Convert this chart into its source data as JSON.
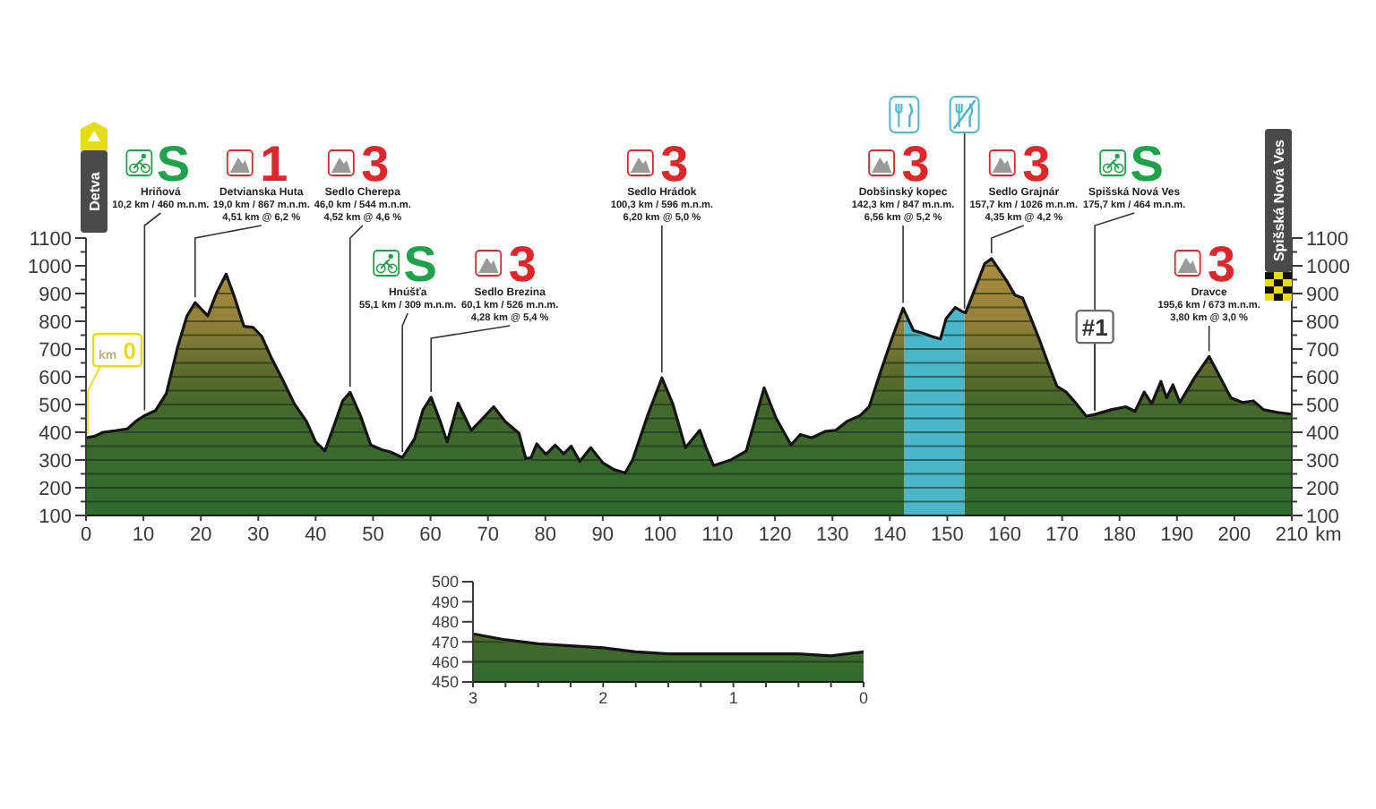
{
  "chart_data": [
    {
      "type": "area",
      "xlabel": "km",
      "color": "#2f6b30",
      "x": [
        0,
        1.4,
        3,
        5.1,
        7.2,
        8.7,
        10.2,
        12.1,
        14,
        16,
        17.6,
        19,
        21.2,
        22.8,
        24.4,
        25.9,
        27.5,
        29.1,
        30.6,
        32.2,
        34.3,
        36.3,
        38.4,
        40,
        41.6,
        43.1,
        44.7,
        46,
        47.8,
        49.6,
        51.5,
        53,
        55.1,
        57.2,
        58.7,
        60.1,
        61.7,
        62.9,
        64.8,
        67.1,
        68.6,
        71,
        73,
        75.4,
        76.6,
        77.5,
        78.5,
        80.1,
        81.7,
        83.2,
        84.5,
        86,
        87.9,
        90,
        92,
        93.9,
        95.2,
        97.8,
        100.3,
        102.2,
        104.4,
        106.9,
        108,
        109.3,
        112.4,
        115,
        116.6,
        118.1,
        120.2,
        122.8,
        124.4,
        126.4,
        128.7,
        130.6,
        132.5,
        134.8,
        136.4,
        138.4,
        140.5,
        142.3,
        144.1,
        145.7,
        147.2,
        148.8,
        149.8,
        151.4,
        152.6,
        153.2,
        155,
        156.5,
        157.7,
        158.9,
        160.3,
        161.8,
        163.1,
        164.4,
        166,
        167.9,
        169.1,
        170.7,
        172.3,
        174.2,
        175.7,
        178.5,
        181.1,
        182.7,
        184.3,
        185.6,
        187.2,
        188.2,
        189.3,
        190.5,
        193.1,
        195.6,
        197.8,
        199.4,
        201.4,
        203.3,
        205.1,
        207.7,
        210
      ],
      "values": [
        380,
        385,
        400,
        405,
        412,
        440,
        460,
        478,
        540,
        710,
        820,
        867,
        820,
        905,
        970,
        885,
        782,
        778,
        746,
        672,
        587,
        502,
        439,
        365,
        333,
        418,
        513,
        544,
        460,
        354,
        337,
        329,
        309,
        375,
        481,
        526,
        439,
        365,
        505,
        407,
        439,
        492,
        439,
        397,
        305,
        308,
        358,
        320,
        354,
        322,
        350,
        295,
        344,
        290,
        265,
        253,
        301,
        460,
        596,
        502,
        344,
        407,
        344,
        280,
        301,
        333,
        450,
        560,
        450,
        354,
        392,
        380,
        403,
        407,
        439,
        460,
        492,
        619,
        746,
        847,
        767,
        757,
        746,
        736,
        810,
        850,
        835,
        831,
        926,
        1007,
        1026,
        990,
        947,
        894,
        884,
        820,
        736,
        630,
        566,
        545,
        507,
        458,
        464,
        481,
        492,
        475,
        545,
        503,
        583,
        524,
        571,
        507,
        598,
        673,
        587,
        524,
        507,
        513,
        481,
        471,
        465
      ],
      "xlim": [
        0,
        210
      ],
      "xticks": [
        0,
        10,
        20,
        30,
        40,
        50,
        60,
        70,
        80,
        90,
        100,
        110,
        120,
        130,
        140,
        150,
        160,
        170,
        180,
        190,
        200,
        210
      ],
      "ylim": [
        100,
        1100
      ],
      "yticks": [
        100,
        {
          "value": 150,
          "label": null
        },
        200,
        {
          "value": 250,
          "label": null
        },
        300,
        {
          "value": 350,
          "label": null
        },
        400,
        {
          "value": 450,
          "label": null
        },
        500,
        {
          "value": 550,
          "label": null
        },
        600,
        {
          "value": 650,
          "label": null
        },
        700,
        {
          "value": 750,
          "label": null
        },
        800,
        {
          "value": 850,
          "label": null
        },
        900,
        {
          "value": 950,
          "label": null
        },
        1000,
        {
          "value": 1050,
          "label": null
        },
        1100
      ],
      "y2lim": [
        100,
        1100
      ],
      "y2ticks": [
        100,
        {
          "value": 150,
          "label": null
        },
        200,
        {
          "value": 250,
          "label": null
        },
        300,
        {
          "value": 350,
          "label": null
        },
        400,
        {
          "value": 450,
          "label": null
        },
        500,
        {
          "value": 550,
          "label": null
        },
        600,
        {
          "value": 650,
          "label": null
        },
        700,
        {
          "value": 750,
          "label": null
        },
        800,
        {
          "value": 850,
          "label": null
        },
        900,
        {
          "value": 950,
          "label": null
        },
        1000,
        {
          "value": 1050,
          "label": null
        },
        1100
      ],
      "grid": "y",
      "bands": [
        {
          "axis": "x",
          "from": 142.5,
          "to": 153,
          "color": "#4cb6ca"
        }
      ],
      "annotations": [
        "Detva",
        "Spišská Nová Ves",
        {
          "text": "km 0",
          "x": 0,
          "y": 380
        },
        {
          "text": "#1",
          "x": 175.7,
          "y": 464
        },
        {
          "text": "S\nHriňová\n10,2 km / 460 m.n.m.",
          "x": 10.2,
          "y": 460
        },
        {
          "text": "1\nDetvianska Huta\n19,0 km / 867 m.n.m.\n4,51 km @ 6,2 %",
          "x": 19,
          "y": 867
        },
        {
          "text": "3\nSedlo Cherepa\n46,0 km / 544 m.n.m.\n4,52 km @ 4,6 %",
          "x": 46,
          "y": 544
        },
        {
          "text": "S\nHnúšťa\n55,1 km / 309 m.n.m.",
          "x": 55.1,
          "y": 309
        },
        {
          "text": "3\nSedlo Brezina\n60,1 km / 526 m.n.m.\n4,28 km @ 5,4 %",
          "x": 60.1,
          "y": 526
        },
        {
          "text": "3\nSedlo Hrádok\n100,3 km / 596 m.n.m.\n6,20 km @ 5,0 %",
          "x": 100.3,
          "y": 596
        },
        {
          "text": "3\nDobšinský kopec\n142,3 km / 847 m.n.m.\n6,56 km @ 5,2 %",
          "x": 142.3,
          "y": 847
        },
        {
          "text": "3\nSedlo Grajnár\n157,7 km / 1026 m.n.m.\n4,35 km @ 4,2 %",
          "x": 157.7,
          "y": 1026
        },
        {
          "text": "S\nSpišská Nová Ves\n175,7 km / 464 m.n.m.",
          "x": 175.7,
          "y": 464
        },
        {
          "text": "3\nDravce\n195,6 km / 673 m.n.m.\n3,80 km @ 3,0 %",
          "x": 195.6,
          "y": 673
        }
      ]
    },
    {
      "type": "area",
      "color": "#2f6b30",
      "x": [
        3,
        2.75,
        2.5,
        2.25,
        2,
        1.75,
        1.5,
        1.25,
        1,
        0.75,
        0.5,
        0.25,
        0
      ],
      "values": [
        474,
        471,
        469,
        468,
        467,
        465,
        464,
        464,
        464,
        464,
        464,
        463,
        465
      ],
      "xlim": [
        3,
        0
      ],
      "xticks": [
        3,
        {
          "value": 2.75,
          "label": null
        },
        {
          "value": 2.5,
          "label": null
        },
        {
          "value": 2.25,
          "label": null
        },
        2,
        {
          "value": 1.75,
          "label": null
        },
        {
          "value": 1.5,
          "label": null
        },
        {
          "value": 1.25,
          "label": null
        },
        1,
        {
          "value": 0.75,
          "label": null
        },
        {
          "value": 0.5,
          "label": null
        },
        {
          "value": 0.25,
          "label": null
        },
        0
      ],
      "ylim": [
        450,
        500
      ],
      "yticks": [
        450,
        460,
        470,
        480,
        490,
        500
      ],
      "grid": "y"
    }
  ]
}
